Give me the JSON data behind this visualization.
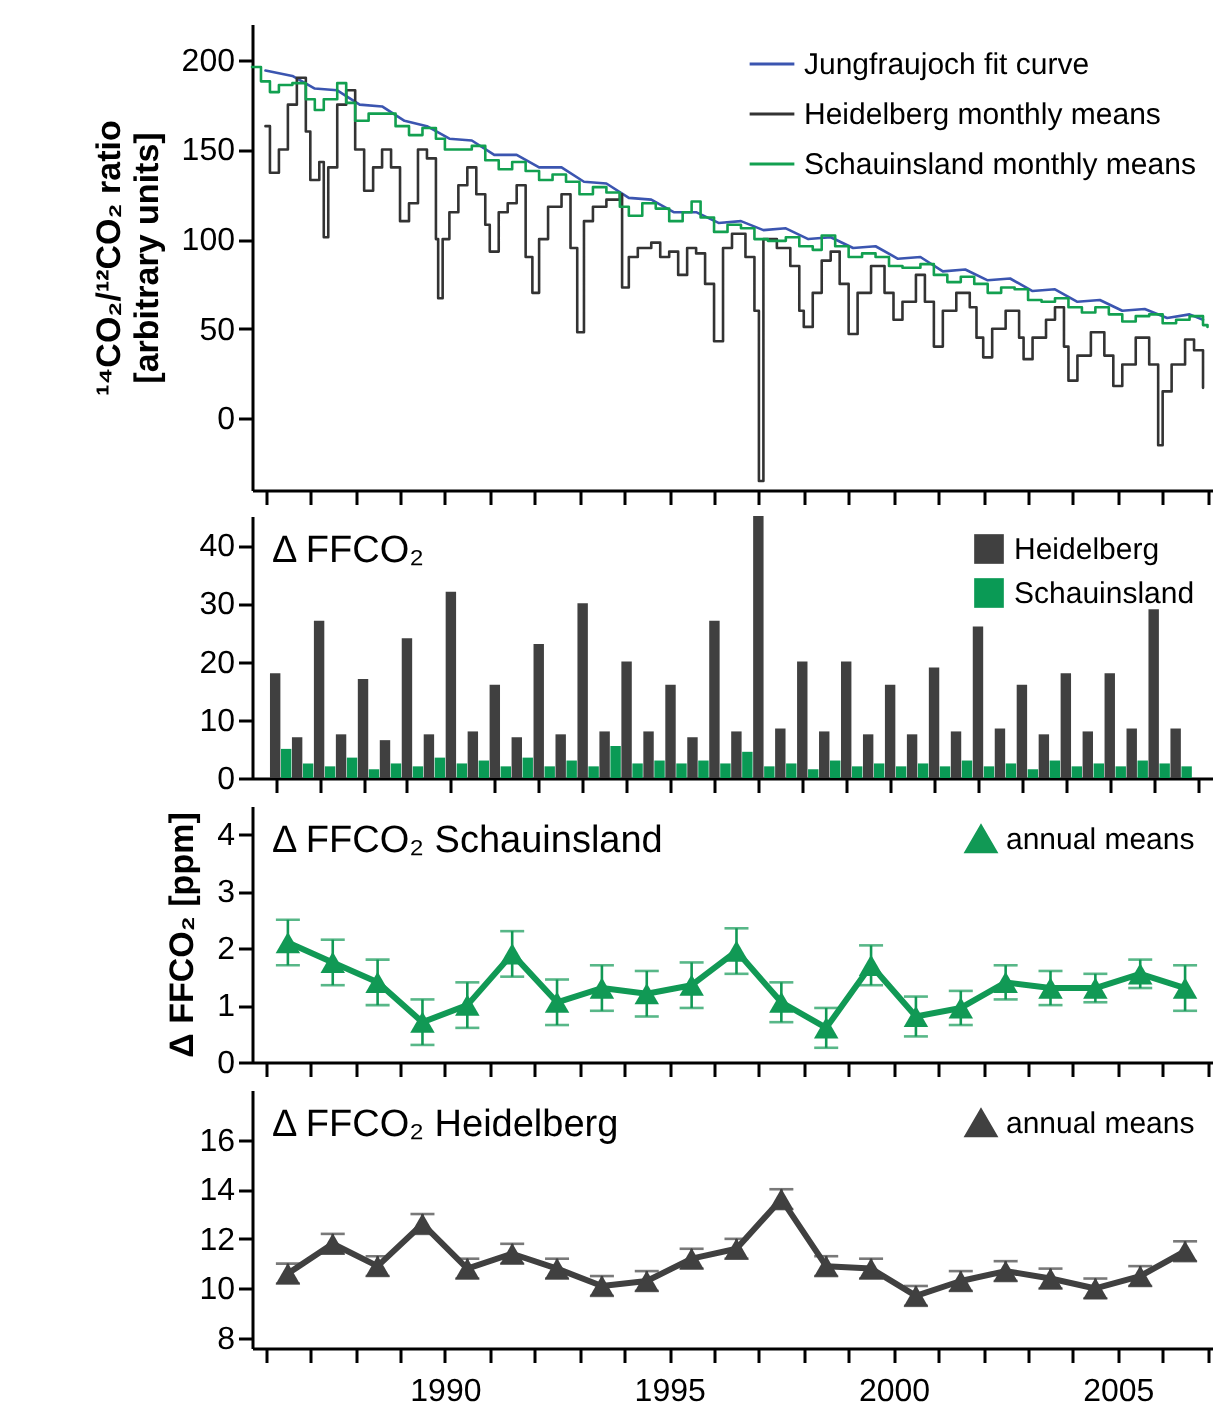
{
  "chart_data": [
    {
      "type": "line",
      "ylabel": "¹⁴CO₂/¹²CO₂ ratio\n[arbitrary units]",
      "xlim": [
        1985.7,
        2007.1
      ],
      "xticks": [
        {
          "value": 1986,
          "label": null
        },
        {
          "value": 1987,
          "label": null
        },
        {
          "value": 1988,
          "label": null
        },
        {
          "value": 1989,
          "label": null
        },
        1990,
        {
          "value": 1991,
          "label": null
        },
        {
          "value": 1992,
          "label": null
        },
        {
          "value": 1993,
          "label": null
        },
        {
          "value": 1994,
          "label": null
        },
        1995,
        {
          "value": 1996,
          "label": null
        },
        {
          "value": 1997,
          "label": null
        },
        {
          "value": 1998,
          "label": null
        },
        {
          "value": 1999,
          "label": null
        },
        2000,
        {
          "value": 2001,
          "label": null
        },
        {
          "value": 2002,
          "label": null
        },
        {
          "value": 2003,
          "label": null
        },
        {
          "value": 2004,
          "label": null
        },
        2005,
        {
          "value": 2006,
          "label": null
        },
        {
          "value": 2007,
          "label": null
        }
      ],
      "ylim": [
        -40,
        220
      ],
      "yticks": [
        0,
        50,
        100,
        150,
        200
      ],
      "tick_labels": "y",
      "legend": "top right",
      "series": [
        {
          "name": "Jungfraujoch fit curve",
          "type": "line",
          "color": "#3b55b0",
          "x": [
            1986.0,
            1986.6,
            1987.1,
            1987.6,
            1988.1,
            1988.6,
            1989.1,
            1989.6,
            1990.1,
            1990.6,
            1991.1,
            1991.6,
            1992.1,
            1992.6,
            1993.1,
            1993.6,
            1994.1,
            1994.6,
            1995.1,
            1995.6,
            1996.1,
            1996.6,
            1997.1,
            1997.6,
            1998.1,
            1998.6,
            1999.1,
            1999.6,
            2000.1,
            2000.6,
            2001.1,
            2001.6,
            2002.1,
            2002.6,
            2003.1,
            2003.6,
            2004.1,
            2004.6,
            2005.1,
            2005.6,
            2006.1,
            2006.6,
            2006.9
          ],
          "values": [
            194,
            191,
            184,
            183,
            175,
            174,
            166,
            163,
            156,
            155,
            147,
            147,
            140,
            140,
            132,
            131,
            123,
            122,
            115,
            115,
            109,
            110,
            105,
            106,
            100,
            101,
            95,
            96,
            89,
            90,
            82,
            83,
            77,
            78,
            71,
            72,
            65,
            66,
            60,
            61,
            56,
            58,
            55
          ]
        },
        {
          "name": "Heidelberg monthly means",
          "type": "step",
          "color": "#333333",
          "x": [
            1986.0,
            1986.1,
            1986.3,
            1986.5,
            1986.7,
            1986.9,
            1987.0,
            1987.2,
            1987.3,
            1987.4,
            1987.6,
            1987.8,
            1988.0,
            1988.2,
            1988.4,
            1988.6,
            1988.8,
            1989.0,
            1989.2,
            1989.4,
            1989.6,
            1989.8,
            1989.85,
            1989.95,
            1990.1,
            1990.3,
            1990.5,
            1990.7,
            1990.9,
            1991.0,
            1991.2,
            1991.4,
            1991.6,
            1991.8,
            1991.95,
            1992.1,
            1992.3,
            1992.6,
            1992.8,
            1992.95,
            1993.1,
            1993.3,
            1993.6,
            1993.9,
            1993.95,
            1994.1,
            1994.3,
            1994.6,
            1994.8,
            1995.0,
            1995.2,
            1995.4,
            1995.6,
            1995.8,
            1996.0,
            1996.2,
            1996.4,
            1996.7,
            1996.9,
            1997.0,
            1997.1,
            1997.4,
            1997.7,
            1997.9,
            1998.0,
            1998.2,
            1998.4,
            1998.6,
            1998.8,
            1999.0,
            1999.2,
            1999.5,
            1999.8,
            2000.0,
            2000.2,
            2000.5,
            2000.7,
            2000.9,
            2001.1,
            2001.4,
            2001.7,
            2001.85,
            2002.0,
            2002.2,
            2002.5,
            2002.8,
            2002.9,
            2003.1,
            2003.4,
            2003.6,
            2003.8,
            2003.9,
            2004.1,
            2004.4,
            2004.7,
            2004.9,
            2005.1,
            2005.4,
            2005.7,
            2005.9,
            2006.0,
            2006.2,
            2006.5,
            2006.7,
            2006.9
          ],
          "values": [
            163,
            137,
            150,
            175,
            190,
            160,
            133,
            143,
            101,
            140,
            175,
            183,
            150,
            127,
            140,
            150,
            140,
            110,
            120,
            150,
            145,
            100,
            67,
            100,
            115,
            130,
            140,
            125,
            108,
            93,
            115,
            120,
            130,
            90,
            70,
            100,
            118,
            125,
            95,
            48,
            110,
            118,
            122,
            125,
            73,
            90,
            95,
            98,
            90,
            93,
            80,
            95,
            92,
            75,
            43,
            95,
            103,
            90,
            60,
            -35,
            100,
            95,
            85,
            60,
            51,
            70,
            88,
            93,
            75,
            47,
            70,
            85,
            70,
            55,
            65,
            80,
            65,
            40,
            60,
            70,
            62,
            45,
            34,
            50,
            60,
            45,
            33,
            45,
            55,
            62,
            40,
            21,
            35,
            48,
            35,
            18,
            30,
            45,
            30,
            -15,
            15,
            30,
            44,
            38,
            17
          ]
        },
        {
          "name": "Schauinsland monthly means",
          "type": "step",
          "color": "#12a050",
          "x": [
            1985.7,
            1985.9,
            1986.1,
            1986.3,
            1986.6,
            1986.9,
            1987.1,
            1987.3,
            1987.6,
            1987.8,
            1988.0,
            1988.3,
            1988.6,
            1988.9,
            1989.2,
            1989.5,
            1989.8,
            1990.0,
            1990.3,
            1990.6,
            1990.9,
            1991.2,
            1991.5,
            1991.8,
            1992.1,
            1992.4,
            1992.7,
            1993.0,
            1993.3,
            1993.6,
            1993.9,
            1994.1,
            1994.4,
            1994.7,
            1995.0,
            1995.3,
            1995.5,
            1995.7,
            1996.0,
            1996.3,
            1996.6,
            1996.9,
            1997.2,
            1997.6,
            1997.9,
            1998.2,
            1998.4,
            1998.7,
            1999.0,
            1999.3,
            1999.6,
            1999.9,
            2000.2,
            2000.6,
            2000.9,
            2001.2,
            2001.5,
            2001.8,
            2002.1,
            2002.4,
            2002.7,
            2003.0,
            2003.3,
            2003.6,
            2003.9,
            2004.2,
            2004.5,
            2004.8,
            2005.1,
            2005.4,
            2005.7,
            2006.0,
            2006.3,
            2006.6,
            2006.9,
            2007.0
          ],
          "values": [
            196,
            188,
            182,
            186,
            187,
            178,
            172,
            178,
            187,
            176,
            166,
            170,
            170,
            163,
            158,
            162,
            156,
            150,
            150,
            152,
            144,
            139,
            143,
            138,
            133,
            136,
            132,
            125,
            129,
            126,
            118,
            113,
            120,
            117,
            110,
            115,
            121,
            112,
            104,
            108,
            106,
            100,
            99,
            101,
            96,
            94,
            102,
            96,
            90,
            92,
            90,
            85,
            84,
            86,
            80,
            76,
            79,
            75,
            70,
            73,
            72,
            66,
            65,
            67,
            62,
            59,
            62,
            58,
            54,
            57,
            58,
            53,
            55,
            57,
            52,
            51
          ]
        }
      ]
    },
    {
      "type": "bar",
      "title": "Δ FFCO₂",
      "xlim": [
        1985.7,
        2007.1
      ],
      "xticks": [
        {
          "value": 1986,
          "label": null
        },
        {
          "value": 1987,
          "label": null
        },
        {
          "value": 1988,
          "label": null
        },
        {
          "value": 1989,
          "label": null
        },
        1990,
        {
          "value": 1991,
          "label": null
        },
        {
          "value": 1992,
          "label": null
        },
        {
          "value": 1993,
          "label": null
        },
        {
          "value": 1994,
          "label": null
        },
        1995,
        {
          "value": 1996,
          "label": null
        },
        {
          "value": 1997,
          "label": null
        },
        {
          "value": 1998,
          "label": null
        },
        {
          "value": 1999,
          "label": null
        },
        2000,
        {
          "value": 2001,
          "label": null
        },
        {
          "value": 2002,
          "label": null
        },
        {
          "value": 2003,
          "label": null
        },
        {
          "value": 2004,
          "label": null
        },
        2005,
        {
          "value": 2006,
          "label": null
        },
        {
          "value": 2007,
          "label": null
        }
      ],
      "ylim": [
        0,
        45
      ],
      "yticks": [
        0,
        10,
        20,
        30,
        40
      ],
      "tick_labels": "y",
      "legend": "top right",
      "x": [
        1986,
        1986.5,
        1987,
        1987.5,
        1988,
        1988.5,
        1989,
        1989.5,
        1990,
        1990.5,
        1991,
        1991.5,
        1992,
        1992.5,
        1993,
        1993.5,
        1994,
        1994.5,
        1995,
        1995.5,
        1996,
        1996.5,
        1997,
        1997.5,
        1998,
        1998.5,
        1999,
        1999.5,
        2000,
        2000.5,
        2001,
        2001.5,
        2002,
        2002.5,
        2003,
        2003.5,
        2004,
        2004.5,
        2005,
        2005.5,
        2006,
        2006.5
      ],
      "series": [
        {
          "name": "Heidelberg",
          "color": "#404040",
          "values": [
            18,
            7,
            27,
            7.5,
            17,
            6.5,
            24,
            7.5,
            32,
            8,
            16,
            7,
            23,
            7.5,
            30,
            8,
            20,
            8,
            16,
            7,
            27,
            8,
            45,
            8.5,
            20,
            8,
            20,
            7.5,
            16,
            7.5,
            19,
            8,
            26,
            8.5,
            16,
            7.5,
            18,
            8,
            18,
            8.5,
            29,
            8.5
          ]
        },
        {
          "name": "Schauinsland",
          "color": "#0a9a55",
          "x": [
            1986.25,
            1986.75,
            1987.25,
            1987.75,
            1988.25,
            1988.75,
            1989.25,
            1989.75,
            1990.25,
            1990.75,
            1991.25,
            1991.75,
            1992.25,
            1992.75,
            1993.25,
            1993.75,
            1994.25,
            1994.75,
            1995.25,
            1995.75,
            1996.25,
            1996.75,
            1997.25,
            1997.75,
            1998.25,
            1998.75,
            1999.25,
            1999.75,
            2000.25,
            2000.75,
            2001.25,
            2001.75,
            2002.25,
            2002.75,
            2003.25,
            2003.75,
            2004.25,
            2004.75,
            2005.25,
            2005.75,
            2006.25,
            2006.75
          ],
          "values": [
            5,
            2.5,
            2,
            3.5,
            1.5,
            2.5,
            2,
            3.5,
            2.5,
            3,
            2,
            3.5,
            2,
            3,
            2,
            5.5,
            2.5,
            3,
            2.5,
            3,
            2.5,
            4.5,
            2,
            2.5,
            1.5,
            3,
            2,
            2.5,
            2,
            2.5,
            2,
            3,
            2,
            2.5,
            1.5,
            3,
            2,
            2.5,
            2,
            3,
            2.5,
            2
          ]
        }
      ]
    },
    {
      "type": "line",
      "title": "Δ FFCO₂ Schauinsland",
      "ylabel": "Δ FFCO₂ [ppm]",
      "xlim": [
        1985.7,
        2007.1
      ],
      "xticks": [
        {
          "value": 1986,
          "label": null
        },
        {
          "value": 1987,
          "label": null
        },
        {
          "value": 1988,
          "label": null
        },
        {
          "value": 1989,
          "label": null
        },
        1990,
        {
          "value": 1991,
          "label": null
        },
        {
          "value": 1992,
          "label": null
        },
        {
          "value": 1993,
          "label": null
        },
        {
          "value": 1994,
          "label": null
        },
        1995,
        {
          "value": 1996,
          "label": null
        },
        {
          "value": 1997,
          "label": null
        },
        {
          "value": 1998,
          "label": null
        },
        {
          "value": 1999,
          "label": null
        },
        2000,
        {
          "value": 2001,
          "label": null
        },
        {
          "value": 2002,
          "label": null
        },
        {
          "value": 2003,
          "label": null
        },
        {
          "value": 2004,
          "label": null
        },
        2005,
        {
          "value": 2006,
          "label": null
        },
        {
          "value": 2007,
          "label": null
        }
      ],
      "ylim": [
        0,
        4.5
      ],
      "yticks": [
        0,
        1,
        2,
        3,
        4
      ],
      "tick_labels": "y",
      "legend": "top right",
      "marker": "triangle",
      "series": [
        {
          "name": "annual means",
          "color": "#119955",
          "x": [
            1986.5,
            1987.5,
            1988.5,
            1989.5,
            1990.5,
            1991.5,
            1992.5,
            1993.5,
            1994.5,
            1995.5,
            1996.5,
            1997.5,
            1998.5,
            1999.5,
            2000.5,
            2001.5,
            2002.5,
            2003.5,
            2004.5,
            2005.5,
            2006.5
          ],
          "values": [
            2.1,
            1.75,
            1.4,
            0.7,
            1.0,
            1.9,
            1.05,
            1.3,
            1.2,
            1.35,
            1.95,
            1.05,
            0.6,
            1.7,
            0.8,
            0.95,
            1.4,
            1.3,
            1.3,
            1.55,
            1.3
          ],
          "errors": [
            0.4,
            0.4,
            0.4,
            0.4,
            0.4,
            0.4,
            0.4,
            0.4,
            0.4,
            0.4,
            0.4,
            0.35,
            0.35,
            0.35,
            0.35,
            0.3,
            0.3,
            0.3,
            0.25,
            0.25,
            0.4
          ]
        }
      ]
    },
    {
      "type": "line",
      "title": "Δ FFCO₂ Heidelberg",
      "xlim": [
        1985.7,
        2007.1
      ],
      "xticks": [
        {
          "value": 1986,
          "label": null
        },
        {
          "value": 1987,
          "label": null
        },
        {
          "value": 1988,
          "label": null
        },
        {
          "value": 1989,
          "label": null
        },
        1990,
        {
          "value": 1991,
          "label": null
        },
        {
          "value": 1992,
          "label": null
        },
        {
          "value": 1993,
          "label": null
        },
        {
          "value": 1994,
          "label": null
        },
        1995,
        {
          "value": 1996,
          "label": null
        },
        {
          "value": 1997,
          "label": null
        },
        {
          "value": 1998,
          "label": null
        },
        {
          "value": 1999,
          "label": null
        },
        2000,
        {
          "value": 2001,
          "label": null
        },
        {
          "value": 2002,
          "label": null
        },
        {
          "value": 2003,
          "label": null
        },
        {
          "value": 2004,
          "label": null
        },
        2005,
        {
          "value": 2006,
          "label": null
        },
        {
          "value": 2007,
          "label": null
        }
      ],
      "ylim": [
        7.6,
        18
      ],
      "yticks": [
        8,
        10,
        12,
        14,
        16
      ],
      "legend": "top right",
      "marker": "triangle",
      "series": [
        {
          "name": "annual means",
          "color": "#404040",
          "x": [
            1986.5,
            1987.5,
            1988.5,
            1989.5,
            1990.5,
            1991.5,
            1992.5,
            1993.5,
            1994.5,
            1995.5,
            1996.5,
            1997.5,
            1998.5,
            1999.5,
            2000.5,
            2001.5,
            2002.5,
            2003.5,
            2004.5,
            2005.5,
            2006.5
          ],
          "values": [
            10.6,
            11.8,
            10.9,
            12.6,
            10.8,
            11.4,
            10.8,
            10.1,
            10.3,
            11.2,
            11.6,
            13.6,
            10.9,
            10.8,
            9.7,
            10.3,
            10.7,
            10.4,
            10.0,
            10.5,
            11.5
          ],
          "errors": [
            0.4,
            0.4,
            0.4,
            0.4,
            0.4,
            0.4,
            0.4,
            0.4,
            0.4,
            0.4,
            0.4,
            0.4,
            0.4,
            0.4,
            0.4,
            0.4,
            0.4,
            0.4,
            0.4,
            0.4,
            0.4
          ]
        }
      ]
    }
  ]
}
